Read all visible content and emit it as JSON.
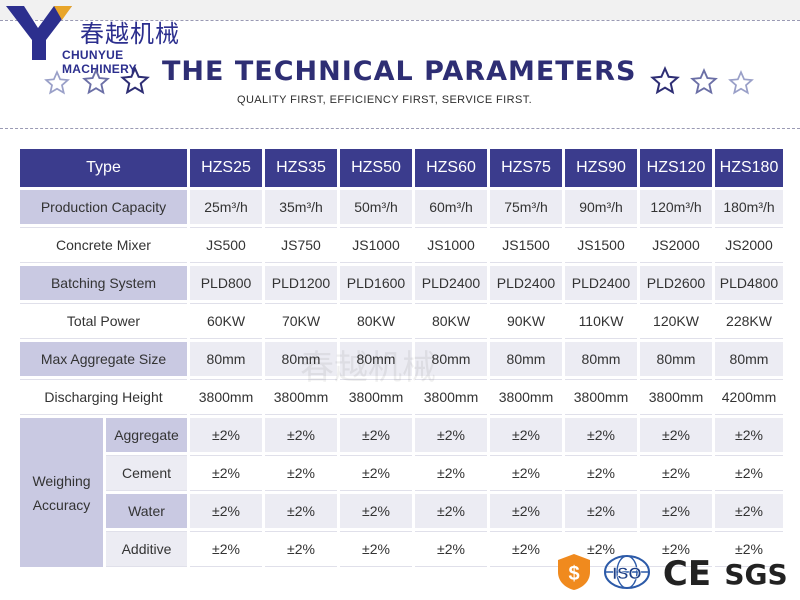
{
  "logo": {
    "text_cn": "春越机械",
    "text_en": "CHUNYUE MACHINERY",
    "letter": "Y",
    "color": "#2c2f8e"
  },
  "header": {
    "title": "THE TECHNICAL PARAMETERS",
    "subtitle": "QUALITY FIRST, EFFICIENCY FIRST, SERVICE FIRST."
  },
  "table": {
    "header": [
      "Type",
      "HZS25",
      "HZS35",
      "HZS50",
      "HZS60",
      "HZS75",
      "HZS90",
      "HZS120",
      "HZS180"
    ],
    "rows": [
      {
        "label": "Production Capacity",
        "values": [
          "25m³/h",
          "35m³/h",
          "50m³/h",
          "60m³/h",
          "75m³/h",
          "90m³/h",
          "120m³/h",
          "180m³/h"
        ]
      },
      {
        "label": "Concrete Mixer",
        "values": [
          "JS500",
          "JS750",
          "JS1000",
          "JS1000",
          "JS1500",
          "JS1500",
          "JS2000",
          "JS2000"
        ]
      },
      {
        "label": "Batching System",
        "values": [
          "PLD800",
          "PLD1200",
          "PLD1600",
          "PLD2400",
          "PLD2400",
          "PLD2400",
          "PLD2600",
          "PLD4800"
        ]
      },
      {
        "label": "Total Power",
        "values": [
          "60KW",
          "70KW",
          "80KW",
          "80KW",
          "90KW",
          "110KW",
          "120KW",
          "228KW"
        ]
      },
      {
        "label": "Max Aggregate Size",
        "values": [
          "80mm",
          "80mm",
          "80mm",
          "80mm",
          "80mm",
          "80mm",
          "80mm",
          "80mm"
        ]
      },
      {
        "label": "Discharging Height",
        "values": [
          "3800mm",
          "3800mm",
          "3800mm",
          "3800mm",
          "3800mm",
          "3800mm",
          "3800mm",
          "4200mm"
        ]
      }
    ],
    "group": {
      "label_line1": "Weighing",
      "label_line2": "Accuracy",
      "rows": [
        {
          "label": "Aggregate",
          "values": [
            "±2%",
            "±2%",
            "±2%",
            "±2%",
            "±2%",
            "±2%",
            "±2%",
            "±2%"
          ]
        },
        {
          "label": "Cement",
          "values": [
            "±2%",
            "±2%",
            "±2%",
            "±2%",
            "±2%",
            "±2%",
            "±2%",
            "±2%"
          ]
        },
        {
          "label": "Water",
          "values": [
            "±2%",
            "±2%",
            "±2%",
            "±2%",
            "±2%",
            "±2%",
            "±2%",
            "±2%"
          ]
        },
        {
          "label": "Additive",
          "values": [
            "±2%",
            "±2%",
            "±2%",
            "±2%",
            "±2%",
            "±2%",
            "±2%",
            "±2%"
          ]
        }
      ]
    }
  },
  "certifications": {
    "iso": "ISO",
    "ce": "CE",
    "sgs": "SGS"
  },
  "colors": {
    "header_bg": "#3b3c8d",
    "label_bg": "#c9c9e2",
    "row_alt_bg": "#ececf3",
    "title": "#2e2e74"
  }
}
